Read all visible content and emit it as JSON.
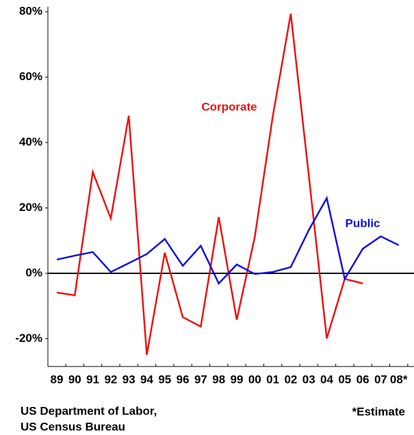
{
  "chart_data": {
    "type": "line",
    "categories": [
      "89",
      "90",
      "91",
      "92",
      "93",
      "94",
      "95",
      "96",
      "97",
      "98",
      "99",
      "00",
      "01",
      "02",
      "03",
      "04",
      "05",
      "06",
      "07",
      "08*"
    ],
    "series": [
      {
        "name": "Corporate",
        "color": "#ee1111",
        "values": [
          -5.9,
          -6.7,
          31,
          16.8,
          48.2,
          -24.9,
          6.3,
          -13.4,
          -16.3,
          17.2,
          -14.2,
          11.1,
          48,
          79.4,
          30,
          -19.9,
          -1.7,
          -3.1,
          null,
          null
        ]
      },
      {
        "name": "Public",
        "color": "#1111dd",
        "values": [
          4.2,
          5.4,
          6.5,
          0.4,
          3.1,
          5.9,
          10.5,
          2.3,
          8.4,
          -3.1,
          2.7,
          -0.2,
          0.4,
          1.9,
          13.2,
          23,
          -1.7,
          7.5,
          11.3,
          8.6
        ]
      }
    ],
    "ylim": [
      -28.5,
      81.5
    ],
    "yticks": [
      {
        "value": -20,
        "label": "-20%"
      },
      {
        "value": 0,
        "label": "0%"
      },
      {
        "value": 20,
        "label": "20%"
      },
      {
        "value": 40,
        "label": "40%"
      },
      {
        "value": 60,
        "label": "60%"
      },
      {
        "value": 80,
        "label": "80%"
      }
    ],
    "source": [
      "US Department of Labor,",
      "US Census Bureau"
    ],
    "note": "*Estimate"
  }
}
